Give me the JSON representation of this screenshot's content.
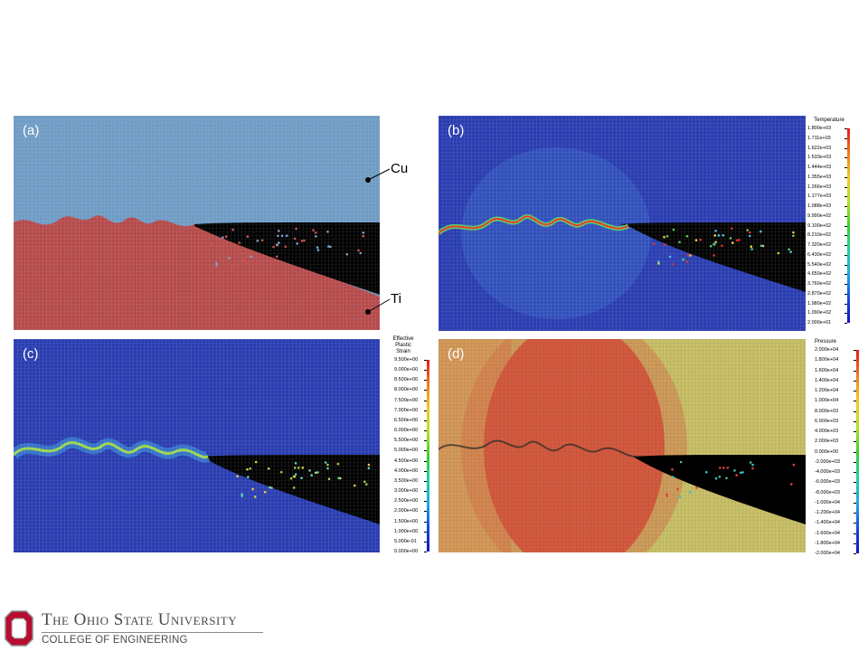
{
  "panels": {
    "a": {
      "label": "(a)"
    },
    "b": {
      "label": "(b)"
    },
    "c": {
      "label": "(c)"
    },
    "d": {
      "label": "(d)"
    }
  },
  "materials": {
    "top": "Cu",
    "bottom": "Ti"
  },
  "colorbars": {
    "temperature": {
      "title": "Temperature",
      "values": [
        "1.800e+03",
        "1.711e+03",
        "1.622e+03",
        "1.533e+03",
        "1.444e+03",
        "1.355e+03",
        "1.266e+03",
        "1.177e+03",
        "1.088e+03",
        "9.990e+02",
        "9.100e+02",
        "8.210e+02",
        "7.320e+02",
        "6.430e+02",
        "5.540e+02",
        "4.650e+02",
        "3.760e+02",
        "2.870e+02",
        "1.980e+02",
        "1.090e+02",
        "2.000e+01"
      ]
    },
    "strain": {
      "title": "Effective\nPlastic\nStrain",
      "values": [
        "9.500e+00",
        "9.000e+00",
        "8.500e+00",
        "8.000e+00",
        "7.500e+00",
        "7.000e+00",
        "6.500e+00",
        "6.000e+00",
        "5.500e+00",
        "5.000e+00",
        "4.500e+00",
        "4.000e+00",
        "3.500e+00",
        "3.000e+00",
        "2.500e+00",
        "2.000e+00",
        "1.500e+00",
        "1.000e+00",
        "5.000e-01",
        "0.000e+00"
      ]
    },
    "pressure": {
      "title": "Pressure",
      "values": [
        "2.000e+04",
        "1.800e+04",
        "1.600e+04",
        "1.400e+04",
        "1.200e+04",
        "1.000e+04",
        "8.000e+03",
        "6.000e+03",
        "4.000e+03",
        "2.000e+03",
        "0.000e+00",
        "-2.000e+03",
        "-4.000e+03",
        "-6.000e+03",
        "-8.000e+03",
        "-1.000e+04",
        "-1.200e+04",
        "-1.400e+04",
        "-1.600e+04",
        "-1.800e+04",
        "-2.000e+04"
      ]
    }
  },
  "footer": {
    "university": "The Ohio State University",
    "college": "COLLEGE OF ENGINEERING"
  }
}
